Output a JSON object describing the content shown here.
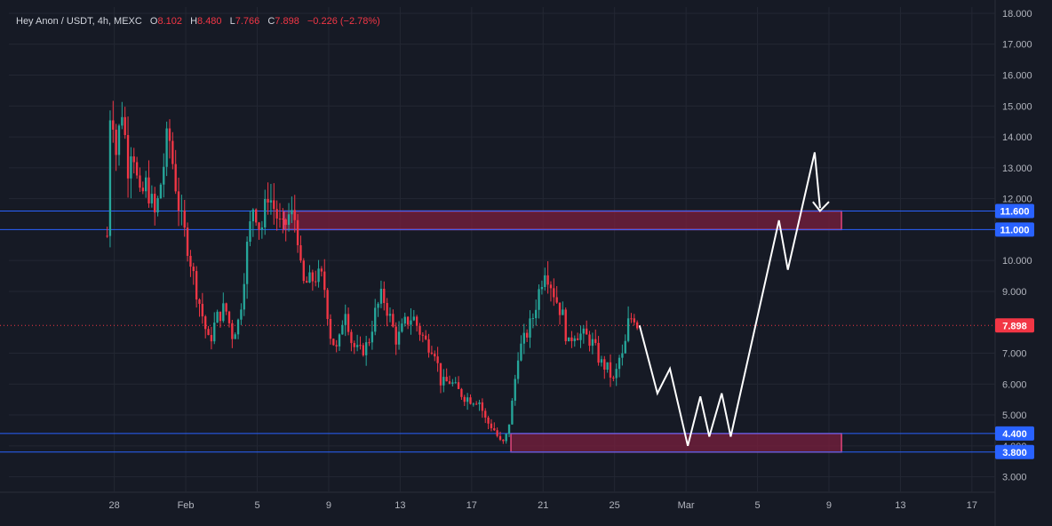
{
  "header": {
    "symbol": "Hey Anon / USDT, 4h, MEXC",
    "open_label": "O",
    "open": "8.102",
    "high_label": "H",
    "high": "8.480",
    "low_label": "L",
    "low": "7.766",
    "close_label": "C",
    "close": "7.898",
    "change": "−0.226 (−2.78%)"
  },
  "colors": {
    "background": "#161a25",
    "up": "#26a69a",
    "down": "#f23645",
    "level_line": "#2962ff",
    "zone_fill": "#7a1f3d",
    "zone_border": "#e0457b",
    "projection": "#ffffff",
    "text": "#d1d4dc"
  },
  "chart_data": {
    "type": "candlestick",
    "timeframe": "4h",
    "y_axis": {
      "ticks": [
        "18.000",
        "17.000",
        "16.000",
        "15.000",
        "14.000",
        "13.000",
        "12.000",
        "10.000",
        "9.000",
        "7.000",
        "6.000",
        "5.000",
        "4.000",
        "3.000"
      ],
      "min": 2.5,
      "max": 18.2
    },
    "x_axis": {
      "ticks": [
        {
          "label": "28",
          "day": 0
        },
        {
          "label": "Feb",
          "day": 4
        },
        {
          "label": "5",
          "day": 8
        },
        {
          "label": "9",
          "day": 12
        },
        {
          "label": "13",
          "day": 16
        },
        {
          "label": "17",
          "day": 20
        },
        {
          "label": "21",
          "day": 24
        },
        {
          "label": "25",
          "day": 28
        },
        {
          "label": "Mar",
          "day": 32
        },
        {
          "label": "5",
          "day": 36
        },
        {
          "label": "9",
          "day": 40
        },
        {
          "label": "13",
          "day": 44
        },
        {
          "label": "17",
          "day": 48
        }
      ],
      "day_min": -5.9,
      "day_max": 49.3
    },
    "price_labels": [
      {
        "value": 11.6,
        "text": "11.600",
        "color": "#2962ff"
      },
      {
        "value": 11.0,
        "text": "11.000",
        "color": "#2962ff"
      },
      {
        "value": 7.898,
        "text": "7.898",
        "color": "#f23645"
      },
      {
        "value": 4.4,
        "text": "4.400",
        "color": "#2962ff"
      },
      {
        "value": 3.8,
        "text": "3.800",
        "color": "#2962ff"
      }
    ],
    "horizontal_levels": [
      11.6,
      11.0,
      4.4,
      3.8
    ],
    "current_price": 7.898,
    "zones": [
      {
        "top": 11.6,
        "bottom": 11.0,
        "start_day": 9.5,
        "end_day": 40.7
      },
      {
        "top": 4.4,
        "bottom": 3.8,
        "start_day": 22.2,
        "end_day": 40.7
      }
    ],
    "projection_path": [
      [
        29.4,
        7.9
      ],
      [
        30.4,
        5.7
      ],
      [
        31.1,
        6.5
      ],
      [
        32.1,
        4.0
      ],
      [
        32.8,
        5.6
      ],
      [
        33.3,
        4.3
      ],
      [
        34.0,
        5.7
      ],
      [
        34.5,
        4.3
      ],
      [
        37.2,
        11.3
      ],
      [
        37.7,
        9.7
      ],
      [
        39.2,
        13.5
      ],
      [
        39.5,
        11.7
      ]
    ],
    "projection_arrowhead": [
      [
        39.1,
        11.9
      ],
      [
        39.5,
        11.6
      ],
      [
        40.0,
        11.9
      ]
    ],
    "ohlc_anchors": [
      [
        -0.4,
        10.8
      ],
      [
        -0.2,
        15.6
      ],
      [
        0.1,
        13.5
      ],
      [
        0.5,
        15.2
      ],
      [
        0.7,
        12.8
      ],
      [
        1.0,
        14.0
      ],
      [
        1.4,
        11.9
      ],
      [
        1.8,
        12.5
      ],
      [
        2.3,
        11.4
      ],
      [
        2.9,
        13.6
      ],
      [
        3.0,
        14.3
      ],
      [
        3.4,
        12.6
      ],
      [
        3.7,
        11.4
      ],
      [
        4.1,
        10.5
      ],
      [
        4.5,
        9.3
      ],
      [
        4.9,
        8.3
      ],
      [
        5.3,
        7.3
      ],
      [
        5.7,
        8.1
      ],
      [
        6.2,
        8.5
      ],
      [
        6.6,
        7.6
      ],
      [
        7.0,
        8.1
      ],
      [
        7.4,
        10.3
      ],
      [
        7.8,
        11.9
      ],
      [
        8.2,
        10.9
      ],
      [
        8.6,
        12.2
      ],
      [
        9.0,
        11.6
      ],
      [
        9.4,
        10.9
      ],
      [
        9.8,
        11.5
      ],
      [
        10.2,
        11.3
      ],
      [
        10.5,
        9.2
      ],
      [
        10.9,
        9.3
      ],
      [
        11.3,
        9.5
      ],
      [
        11.7,
        9.4
      ],
      [
        12.1,
        7.6
      ],
      [
        12.5,
        7.0
      ],
      [
        12.9,
        8.6
      ],
      [
        13.3,
        7.3
      ],
      [
        13.7,
        7.0
      ],
      [
        14.2,
        7.3
      ],
      [
        14.6,
        8.3
      ],
      [
        15.0,
        8.9
      ],
      [
        15.4,
        8.2
      ],
      [
        15.8,
        7.4
      ],
      [
        16.3,
        8.0
      ],
      [
        16.7,
        8.2
      ],
      [
        17.1,
        7.7
      ],
      [
        17.5,
        7.3
      ],
      [
        17.9,
        7.2
      ],
      [
        18.3,
        6.0
      ],
      [
        18.8,
        6.1
      ],
      [
        19.2,
        5.8
      ],
      [
        19.6,
        5.6
      ],
      [
        20.0,
        5.5
      ],
      [
        20.4,
        5.5
      ],
      [
        20.8,
        4.8
      ],
      [
        21.2,
        4.6
      ],
      [
        21.7,
        4.0
      ],
      [
        22.0,
        4.4
      ],
      [
        22.3,
        5.5
      ],
      [
        22.6,
        7.0
      ],
      [
        23.0,
        7.5
      ],
      [
        23.4,
        8.1
      ],
      [
        23.8,
        9.1
      ],
      [
        24.1,
        9.8
      ],
      [
        24.3,
        9.5
      ],
      [
        24.7,
        8.8
      ],
      [
        25.1,
        8.2
      ],
      [
        25.4,
        7.2
      ],
      [
        25.7,
        7.7
      ],
      [
        26.1,
        7.6
      ],
      [
        26.5,
        7.5
      ],
      [
        26.8,
        7.3
      ],
      [
        27.2,
        6.7
      ],
      [
        27.6,
        6.5
      ],
      [
        28.0,
        6.0
      ],
      [
        28.2,
        6.8
      ],
      [
        28.5,
        6.9
      ],
      [
        28.8,
        8.1
      ],
      [
        29.1,
        8.2
      ],
      [
        29.3,
        7.9
      ]
    ]
  }
}
